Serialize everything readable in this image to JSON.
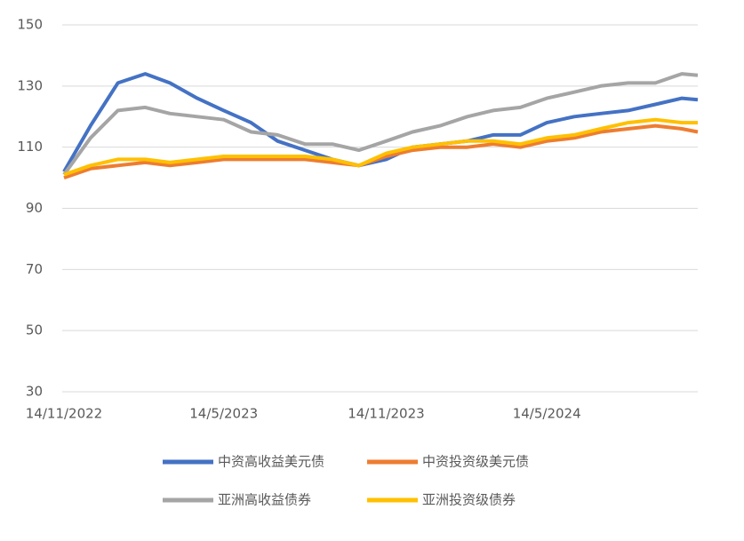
{
  "chart_data": {
    "type": "line",
    "x": [
      "14/11/2022",
      "14/12/2022",
      "14/1/2023",
      "14/2/2023",
      "14/3/2023",
      "14/4/2023",
      "14/5/2023",
      "14/6/2023",
      "14/7/2023",
      "14/8/2023",
      "14/9/2023",
      "14/10/2023",
      "14/11/2023",
      "14/12/2023",
      "14/1/2024",
      "14/2/2024",
      "14/3/2024",
      "14/4/2024",
      "14/5/2024",
      "14/6/2024",
      "14/7/2024",
      "14/8/2024",
      "14/9/2024",
      "14/10/2024",
      "1/11/2024"
    ],
    "series": [
      {
        "name": "中资高收益美元债",
        "color": "#4472c4",
        "values": [
          102,
          117,
          131,
          134,
          131,
          126,
          122,
          118,
          112,
          109,
          106,
          104,
          106,
          110,
          111,
          112,
          114,
          114,
          118,
          120,
          121,
          122,
          124,
          126,
          125.5
        ]
      },
      {
        "name": "中资投资级美元债",
        "color": "#ed7d31",
        "values": [
          100,
          103,
          104,
          105,
          104,
          105,
          106,
          106,
          106,
          106,
          105,
          104,
          107,
          109,
          110,
          110,
          111,
          110,
          112,
          113,
          115,
          116,
          117,
          116,
          115
        ]
      },
      {
        "name": "亚洲高收益债券",
        "color": "#a5a5a5",
        "values": [
          101,
          113,
          122,
          123,
          121,
          120,
          119,
          115,
          114,
          111,
          111,
          109,
          112,
          115,
          117,
          120,
          122,
          123,
          126,
          128,
          130,
          131,
          131,
          134,
          133.5
        ]
      },
      {
        "name": "亚洲投资级债券",
        "color": "#ffc000",
        "values": [
          101,
          104,
          106,
          106,
          105,
          106,
          107,
          107,
          107,
          107,
          106,
          104,
          108,
          110,
          111,
          112,
          112,
          111,
          113,
          114,
          116,
          118,
          119,
          118,
          118
        ]
      }
    ],
    "xlim": [
      "14/11/2022",
      "1/11/2024"
    ],
    "xticks": [
      "14/11/2022",
      "14/5/2023",
      "14/11/2023",
      "14/5/2024"
    ],
    "ylim": [
      30,
      150
    ],
    "yticks": [
      30,
      50,
      70,
      90,
      110,
      130,
      150
    ],
    "grid": true
  }
}
